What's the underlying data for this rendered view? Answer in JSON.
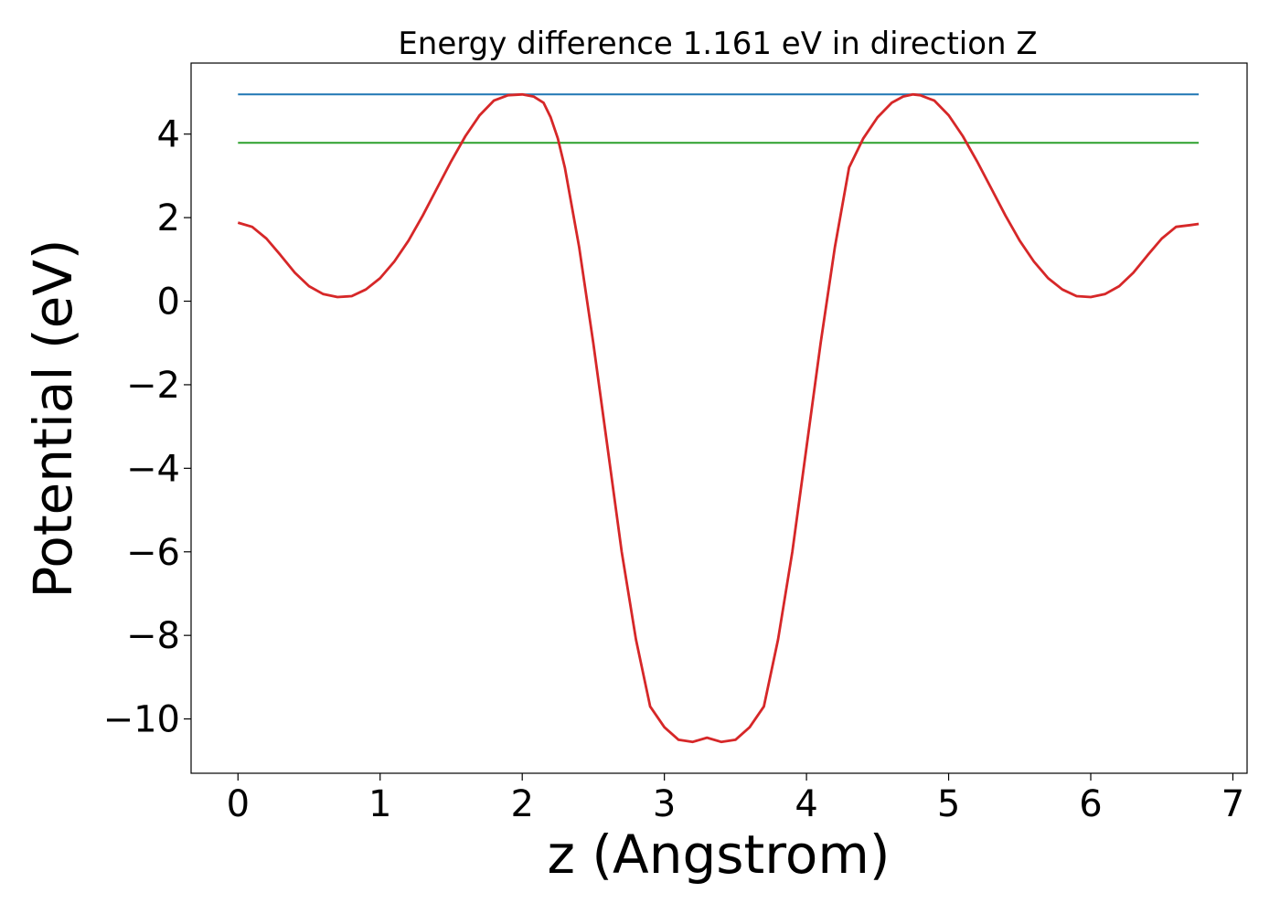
{
  "chart_data": {
    "type": "line",
    "title": "Energy difference 1.161 eV in direction Z",
    "xlabel": "z (Angstrom)",
    "ylabel": "Potential (eV)",
    "xlim": [
      -0.33,
      7.1
    ],
    "ylim": [
      -11.3,
      5.7
    ],
    "xticks": [
      {
        "value": 0,
        "label": "0"
      },
      {
        "value": 1,
        "label": "1"
      },
      {
        "value": 2,
        "label": "2"
      },
      {
        "value": 3,
        "label": "3"
      },
      {
        "value": 4,
        "label": "4"
      },
      {
        "value": 5,
        "label": "5"
      },
      {
        "value": 6,
        "label": "6"
      },
      {
        "value": 7,
        "label": "7"
      }
    ],
    "yticks": [
      {
        "value": 4,
        "label": "4"
      },
      {
        "value": 2,
        "label": "2"
      },
      {
        "value": 0,
        "label": "0"
      },
      {
        "value": -2,
        "label": "−2"
      },
      {
        "value": -4,
        "label": "−4"
      },
      {
        "value": -6,
        "label": "−6"
      },
      {
        "value": -8,
        "label": "−8"
      },
      {
        "value": -10,
        "label": "−10"
      }
    ],
    "grid": false,
    "legend": "none",
    "series": [
      {
        "color": "#1f77b4",
        "x": [
          0,
          6.76
        ],
        "y": [
          4.95,
          4.95
        ]
      },
      {
        "color": "#2ca02c",
        "x": [
          0,
          6.76
        ],
        "y": [
          3.79,
          3.79
        ]
      },
      {
        "color": "#d62728",
        "x": [
          0,
          0.1,
          0.2,
          0.3,
          0.4,
          0.5,
          0.6,
          0.7,
          0.8,
          0.9,
          1.0,
          1.1,
          1.2,
          1.3,
          1.4,
          1.5,
          1.6,
          1.7,
          1.8,
          1.9,
          2.0,
          2.08,
          2.15,
          2.2,
          2.25,
          2.3,
          2.4,
          2.5,
          2.6,
          2.7,
          2.8,
          2.9,
          3.0,
          3.1,
          3.2,
          3.3,
          3.4,
          3.5,
          3.6,
          3.7,
          3.8,
          3.9,
          4.0,
          4.1,
          4.2,
          4.3,
          4.4,
          4.5,
          4.6,
          4.68,
          4.75,
          4.8,
          4.9,
          5.0,
          5.1,
          5.2,
          5.3,
          5.4,
          5.5,
          5.6,
          5.7,
          5.8,
          5.9,
          6.0,
          6.1,
          6.2,
          6.3,
          6.4,
          6.5,
          6.6,
          6.7,
          6.76
        ],
        "y": [
          1.88,
          1.78,
          1.5,
          1.1,
          0.68,
          0.36,
          0.17,
          0.1,
          0.12,
          0.28,
          0.55,
          0.95,
          1.45,
          2.05,
          2.7,
          3.35,
          3.95,
          4.45,
          4.8,
          4.93,
          4.95,
          4.9,
          4.75,
          4.4,
          3.9,
          3.2,
          1.3,
          -1.0,
          -3.5,
          -6.0,
          -8.1,
          -9.7,
          -10.2,
          -10.5,
          -10.55,
          -10.45,
          -10.55,
          -10.5,
          -10.2,
          -9.7,
          -8.1,
          -6.0,
          -3.5,
          -1.0,
          1.3,
          3.2,
          3.9,
          4.4,
          4.75,
          4.9,
          4.95,
          4.93,
          4.8,
          4.45,
          3.95,
          3.35,
          2.7,
          2.05,
          1.45,
          0.95,
          0.55,
          0.28,
          0.12,
          0.1,
          0.17,
          0.36,
          0.68,
          1.1,
          1.5,
          1.78,
          1.82,
          1.85
        ]
      }
    ]
  }
}
